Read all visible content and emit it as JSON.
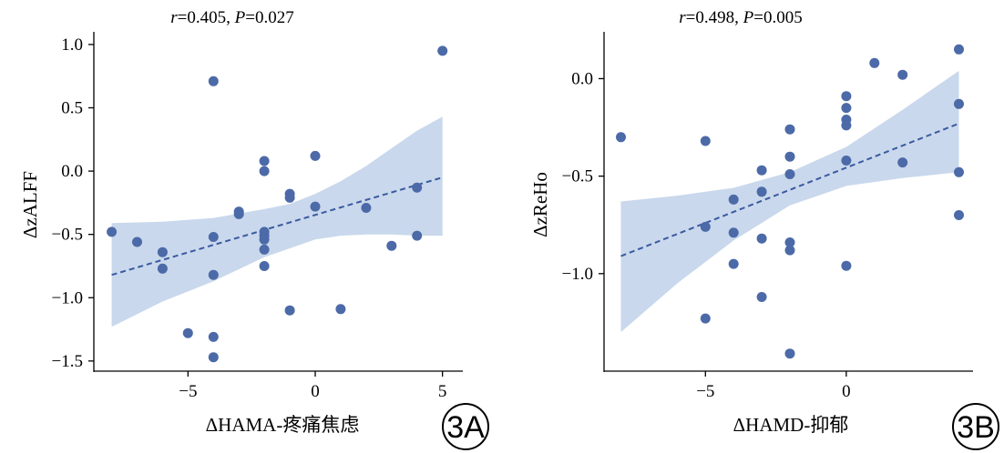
{
  "colors": {
    "point": "#4c6aa8",
    "band": "#c9d8ec",
    "line": "#3a5aa0",
    "axis": "#000000"
  },
  "chart_data": [
    {
      "panel": "3A",
      "type": "scatter",
      "stat_text": {
        "r_symbol": "r",
        "r_value": "=0.405, ",
        "p_symbol": "P",
        "p_value": "=0.027"
      },
      "xlabel": "ΔHAMA-疼痛焦虑",
      "ylabel": "ΔzALFF",
      "xlim": [
        -8.7,
        5.8
      ],
      "ylim": [
        -1.58,
        1.1
      ],
      "xticks": [
        -5,
        0,
        5
      ],
      "xtick_labels": [
        "−5",
        "0",
        "5"
      ],
      "yticks": [
        -1.5,
        -1.0,
        -0.5,
        0.0,
        0.5,
        1.0
      ],
      "ytick_labels": [
        "−1.5",
        "−1.0",
        "−0.5",
        "0.0",
        "0.5",
        "1.0"
      ],
      "regression": {
        "x": [
          -8,
          5
        ],
        "y": [
          -0.82,
          -0.05
        ]
      },
      "ci_band": {
        "x": [
          -8,
          -6,
          -4,
          -2,
          -1,
          0,
          1,
          2,
          3,
          4,
          5
        ],
        "upper": [
          -0.41,
          -0.4,
          -0.37,
          -0.3,
          -0.26,
          -0.18,
          -0.08,
          0.04,
          0.18,
          0.32,
          0.43
        ],
        "lower": [
          -1.23,
          -1.03,
          -0.87,
          -0.68,
          -0.61,
          -0.54,
          -0.51,
          -0.5,
          -0.5,
          -0.51,
          -0.51
        ]
      },
      "points": [
        [
          -8,
          -0.48
        ],
        [
          -7,
          -0.56
        ],
        [
          -6,
          -0.64
        ],
        [
          -6,
          -0.77
        ],
        [
          -5,
          -1.28
        ],
        [
          -4,
          0.71
        ],
        [
          -4,
          -0.52
        ],
        [
          -4,
          -0.82
        ],
        [
          -4,
          -1.31
        ],
        [
          -4,
          -1.47
        ],
        [
          -3,
          -0.32
        ],
        [
          -3,
          -0.34
        ],
        [
          -2,
          0.08
        ],
        [
          -2,
          0.0
        ],
        [
          -2,
          -0.48
        ],
        [
          -2,
          -0.51
        ],
        [
          -2,
          -0.54
        ],
        [
          -2,
          -0.62
        ],
        [
          -2,
          -0.75
        ],
        [
          -1,
          -0.18
        ],
        [
          -1,
          -0.21
        ],
        [
          -1,
          -1.1
        ],
        [
          0,
          0.12
        ],
        [
          0,
          -0.28
        ],
        [
          1,
          -1.09
        ],
        [
          2,
          -0.29
        ],
        [
          3,
          -0.59
        ],
        [
          4,
          -0.13
        ],
        [
          4,
          -0.51
        ],
        [
          5,
          0.95
        ]
      ]
    },
    {
      "panel": "3B",
      "type": "scatter",
      "stat_text": {
        "r_symbol": "r",
        "r_value": "=0.498, ",
        "p_symbol": "P",
        "p_value": "=0.005"
      },
      "xlabel": "ΔHAMD-抑郁",
      "ylabel": "ΔzReHo",
      "xlim": [
        -8.6,
        4.5
      ],
      "ylim": [
        -1.5,
        0.24
      ],
      "xticks": [
        -5,
        0
      ],
      "xtick_labels": [
        "−5",
        "0"
      ],
      "yticks": [
        -1.0,
        -0.5,
        0.0
      ],
      "ytick_labels": [
        "−1.0",
        "−0.5",
        "0.0"
      ],
      "regression": {
        "x": [
          -8,
          4
        ],
        "y": [
          -0.91,
          -0.23
        ]
      },
      "ci_band": {
        "x": [
          -8,
          -6,
          -4,
          -2,
          0,
          2,
          4
        ],
        "upper": [
          -0.63,
          -0.6,
          -0.56,
          -0.48,
          -0.35,
          -0.16,
          0.04
        ],
        "lower": [
          -1.3,
          -1.05,
          -0.83,
          -0.65,
          -0.55,
          -0.51,
          -0.48
        ]
      },
      "points": [
        [
          -8,
          -0.3
        ],
        [
          -5,
          -0.32
        ],
        [
          -5,
          -0.76
        ],
        [
          -5,
          -1.23
        ],
        [
          -4,
          -0.62
        ],
        [
          -4,
          -0.79
        ],
        [
          -4,
          -0.95
        ],
        [
          -3,
          -0.47
        ],
        [
          -3,
          -0.58
        ],
        [
          -3,
          -0.82
        ],
        [
          -3,
          -1.12
        ],
        [
          -2,
          -0.26
        ],
        [
          -2,
          -0.4
        ],
        [
          -2,
          -0.49
        ],
        [
          -2,
          -0.84
        ],
        [
          -2,
          -0.88
        ],
        [
          -2,
          -1.41
        ],
        [
          0,
          -0.09
        ],
        [
          0,
          -0.15
        ],
        [
          0,
          -0.21
        ],
        [
          0,
          -0.24
        ],
        [
          0,
          -0.42
        ],
        [
          0,
          -0.96
        ],
        [
          1,
          0.08
        ],
        [
          2,
          0.02
        ],
        [
          2,
          -0.43
        ],
        [
          4,
          0.15
        ],
        [
          4,
          -0.13
        ],
        [
          4,
          -0.48
        ],
        [
          4,
          -0.7
        ]
      ]
    }
  ]
}
